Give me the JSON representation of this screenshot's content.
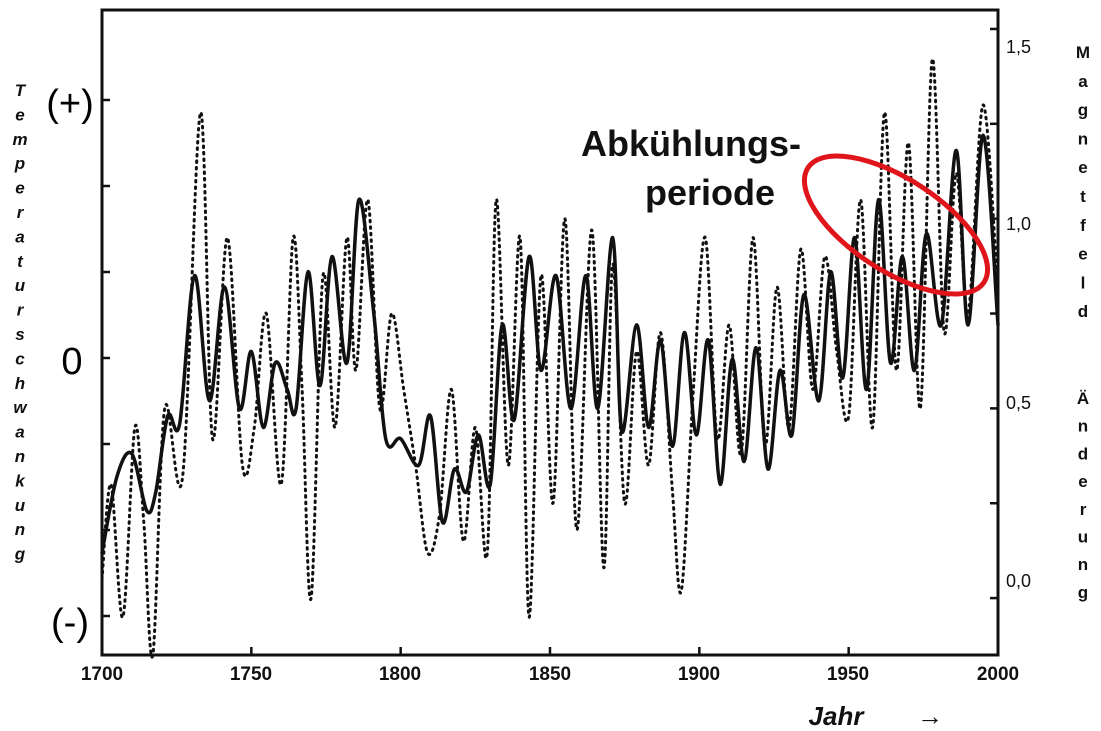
{
  "chart_data": {
    "type": "line",
    "xlabel": "Jahr",
    "xlabel_arrow": "→",
    "ylabel_left": "Temperaturschwankung",
    "ylabel_right_top": "Magnetfeld",
    "ylabel_right_bottom": "Änderung",
    "x_ticks": [
      "1700",
      "1750",
      "1800",
      "1850",
      "1900",
      "1950",
      "2000"
    ],
    "xlim": [
      1700,
      2000
    ],
    "y_left_ticks": [
      "(+)",
      "0",
      "(-)"
    ],
    "y_right_ticks": [
      "1,5",
      "1,0",
      "0,5",
      "0,0"
    ],
    "y_right_lim": [
      -0.15,
      1.55
    ],
    "annotation": {
      "line1": "Abkühlungs-",
      "line2": "periode",
      "marker": "ellipse",
      "marker_color": "#e0141b"
    },
    "series": [
      {
        "style": "solid",
        "x": [
          1700,
          1705,
          1710,
          1715,
          1718,
          1722,
          1726,
          1731,
          1736,
          1741,
          1746,
          1750,
          1754,
          1758,
          1762,
          1765,
          1769,
          1773,
          1777,
          1782,
          1786,
          1791,
          1795,
          1800,
          1806,
          1810,
          1814,
          1818,
          1822,
          1826,
          1830,
          1834,
          1838,
          1843,
          1847,
          1852,
          1857,
          1862,
          1866,
          1871,
          1874,
          1879,
          1883,
          1887,
          1891,
          1895,
          1899,
          1903,
          1907,
          1911,
          1915,
          1919,
          1923,
          1927,
          1931,
          1935,
          1940,
          1944,
          1948,
          1952,
          1956,
          1960,
          1964,
          1968,
          1972,
          1976,
          1981,
          1986,
          1990,
          1995,
          2000
        ],
        "y": [
          0.12,
          0.32,
          0.38,
          0.23,
          0.28,
          0.48,
          0.46,
          0.85,
          0.52,
          0.82,
          0.5,
          0.65,
          0.45,
          0.62,
          0.55,
          0.5,
          0.86,
          0.56,
          0.9,
          0.62,
          1.05,
          0.75,
          0.42,
          0.42,
          0.35,
          0.48,
          0.2,
          0.34,
          0.28,
          0.43,
          0.3,
          0.72,
          0.47,
          0.9,
          0.6,
          0.85,
          0.5,
          0.85,
          0.5,
          0.95,
          0.44,
          0.72,
          0.45,
          0.68,
          0.4,
          0.7,
          0.43,
          0.68,
          0.3,
          0.63,
          0.36,
          0.66,
          0.34,
          0.6,
          0.43,
          0.8,
          0.52,
          0.86,
          0.58,
          0.95,
          0.55,
          1.05,
          0.62,
          0.9,
          0.6,
          0.96,
          0.72,
          1.18,
          0.72,
          1.22,
          0.72
        ]
      },
      {
        "style": "dotted",
        "x": [
          1700,
          1703,
          1707,
          1711,
          1714,
          1717,
          1721,
          1727,
          1733,
          1737,
          1742,
          1747,
          1751,
          1755,
          1760,
          1764,
          1767,
          1770,
          1774,
          1778,
          1782,
          1785,
          1789,
          1793,
          1797,
          1801,
          1805,
          1809,
          1813,
          1817,
          1821,
          1825,
          1829,
          1832,
          1836,
          1840,
          1843,
          1847,
          1851,
          1855,
          1859,
          1864,
          1868,
          1871,
          1875,
          1879,
          1883,
          1887,
          1891,
          1894,
          1898,
          1902,
          1906,
          1910,
          1914,
          1918,
          1922,
          1926,
          1930,
          1934,
          1938,
          1942,
          1946,
          1950,
          1954,
          1958,
          1962,
          1966,
          1970,
          1974,
          1978,
          1982,
          1986,
          1990,
          1995,
          2000
        ],
        "y": [
          0.05,
          0.3,
          -0.05,
          0.45,
          0.2,
          -0.15,
          0.5,
          0.32,
          1.28,
          0.42,
          0.95,
          0.35,
          0.45,
          0.75,
          0.3,
          0.95,
          0.55,
          0.0,
          0.85,
          0.45,
          0.95,
          0.6,
          1.05,
          0.5,
          0.75,
          0.55,
          0.35,
          0.12,
          0.22,
          0.55,
          0.15,
          0.45,
          0.12,
          1.05,
          0.35,
          0.95,
          -0.05,
          0.85,
          0.25,
          1.0,
          0.18,
          0.97,
          0.08,
          0.88,
          0.25,
          0.65,
          0.35,
          0.7,
          0.28,
          0.02,
          0.55,
          0.95,
          0.42,
          0.72,
          0.38,
          0.95,
          0.4,
          0.82,
          0.45,
          0.92,
          0.55,
          0.9,
          0.65,
          0.48,
          1.05,
          0.45,
          1.28,
          0.6,
          1.2,
          0.5,
          1.42,
          0.7,
          1.12,
          0.75,
          1.3,
          0.8
        ]
      }
    ]
  }
}
